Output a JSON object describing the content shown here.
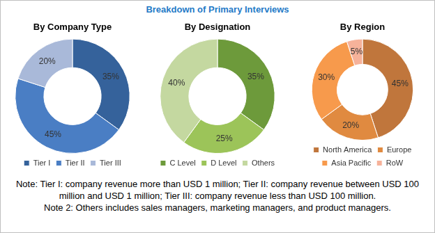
{
  "title": "Breakdown of Primary Interviews",
  "chart_data": [
    {
      "type": "doughnut",
      "title": "By Company Type",
      "categories": [
        "Tier I",
        "Tier II",
        "Tier III"
      ],
      "values": [
        35,
        45,
        20
      ],
      "value_labels": [
        "35%",
        "45%",
        "20%"
      ],
      "colors": [
        "#35629b",
        "#4a7ec4",
        "#a9b9d9"
      ],
      "data_labels": true,
      "legend": "bottom"
    },
    {
      "type": "doughnut",
      "title": "By Designation",
      "categories": [
        "C Level",
        "D Level",
        "Others"
      ],
      "values": [
        35,
        25,
        40
      ],
      "value_labels": [
        "35%",
        "25%",
        "40%"
      ],
      "colors": [
        "#6d9a3b",
        "#9cc459",
        "#c4d8a0"
      ],
      "data_labels": true,
      "legend": "bottom"
    },
    {
      "type": "doughnut",
      "title": "By Region",
      "categories": [
        "North America",
        "Europe",
        "Asia Pacific",
        "RoW"
      ],
      "values": [
        45,
        20,
        30,
        5
      ],
      "value_labels": [
        "45%",
        "20%",
        "30%",
        "5%"
      ],
      "colors": [
        "#c0763c",
        "#e08a40",
        "#f79a4c",
        "#f6b29a"
      ],
      "data_labels": true,
      "legend": "bottom"
    }
  ],
  "notes": [
    "Note: Tier I: company revenue more than USD 1 million; Tier II: company revenue between USD 100 million and USD 1 million; Tier III: company revenue less than USD 100 million.",
    "Note 2: Others includes sales managers, marketing managers, and product managers."
  ]
}
